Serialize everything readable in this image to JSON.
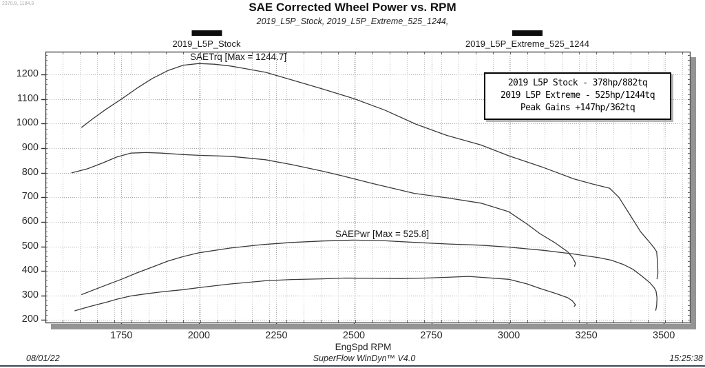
{
  "cursor_readout": "2370.8, 1184.3",
  "header": {
    "title": "SAE Corrected Wheel Power vs. RPM",
    "subtitle": "2019_L5P_Stock, 2019_L5P_Extreme_525_1244,"
  },
  "legend": {
    "stock_label": "2019_L5P_Stock",
    "extreme_label": "2019_L5P_Extreme_525_1244"
  },
  "annotations": {
    "torque_max_label": "SAETrq [Max = 1244.7]",
    "power_max_label": "SAEPwr [Max = 525.8]"
  },
  "info_box": {
    "line1": "2019 L5P Stock - 378hp/882tq",
    "line2": "2019 L5P Extreme - 525hp/1244tq",
    "line3": "Peak Gains +147hp/362tq"
  },
  "footer": {
    "date": "08/01/22",
    "app": "SuperFlow WinDyn™ V4.0",
    "time": "15:25:38"
  },
  "colors": {
    "curve": "#3a3a3a",
    "grid_minor": "#c6c6c6",
    "grid_major": "#a8a8a8",
    "frame": "#4a4a4a",
    "shadow": "#949494"
  },
  "chart_data": {
    "type": "line",
    "title": "SAE Corrected Wheel Power vs. RPM",
    "subtitle": "2019_L5P_Stock, 2019_L5P_Extreme_525_1244,",
    "xlabel": "EngSpd RPM",
    "ylabel": "",
    "xlim": [
      1505,
      3584
    ],
    "ylim": [
      190,
      1293
    ],
    "x_ticks": [
      1750,
      2000,
      2250,
      2500,
      2750,
      3000,
      3250,
      3500
    ],
    "y_ticks": [
      200,
      300,
      400,
      500,
      600,
      700,
      800,
      900,
      1000,
      1100,
      1200
    ],
    "grid": "dotted",
    "legend_position": "top",
    "series": [
      {
        "name": "2019_L5P_Extreme_525_1244 SAETrq",
        "peak": 1244.7,
        "points": [
          [
            1622,
            985
          ],
          [
            1660,
            1022
          ],
          [
            1700,
            1058
          ],
          [
            1750,
            1100
          ],
          [
            1800,
            1144
          ],
          [
            1850,
            1184
          ],
          [
            1900,
            1216
          ],
          [
            1950,
            1238
          ],
          [
            2000,
            1244.7
          ],
          [
            2050,
            1242
          ],
          [
            2100,
            1235
          ],
          [
            2150,
            1224
          ],
          [
            2215,
            1209
          ],
          [
            2300,
            1178
          ],
          [
            2400,
            1141
          ],
          [
            2500,
            1102
          ],
          [
            2600,
            1055
          ],
          [
            2700,
            998
          ],
          [
            2800,
            952
          ],
          [
            2910,
            913
          ],
          [
            3000,
            869
          ],
          [
            3110,
            822
          ],
          [
            3210,
            775
          ],
          [
            3270,
            754
          ],
          [
            3325,
            737
          ],
          [
            3355,
            700
          ],
          [
            3380,
            650
          ],
          [
            3405,
            600
          ],
          [
            3425,
            560
          ],
          [
            3450,
            523
          ],
          [
            3468,
            495
          ],
          [
            3477,
            478
          ],
          [
            3480,
            430
          ],
          [
            3481,
            390
          ],
          [
            3478,
            368
          ]
        ]
      },
      {
        "name": "2019_L5P_Extreme_525_1244 SAEPwr",
        "peak": 525.8,
        "points": [
          [
            1622,
            304
          ],
          [
            1700,
            342
          ],
          [
            1750,
            366
          ],
          [
            1800,
            392
          ],
          [
            1850,
            416
          ],
          [
            1900,
            440
          ],
          [
            1950,
            459
          ],
          [
            2000,
            474
          ],
          [
            2100,
            493
          ],
          [
            2200,
            507
          ],
          [
            2300,
            516
          ],
          [
            2400,
            522
          ],
          [
            2500,
            525.8
          ],
          [
            2600,
            523
          ],
          [
            2700,
            516
          ],
          [
            2800,
            510
          ],
          [
            2910,
            505
          ],
          [
            3000,
            497
          ],
          [
            3110,
            484
          ],
          [
            3210,
            469
          ],
          [
            3290,
            454
          ],
          [
            3330,
            444
          ],
          [
            3370,
            426
          ],
          [
            3400,
            407
          ],
          [
            3430,
            378
          ],
          [
            3455,
            352
          ],
          [
            3468,
            333
          ],
          [
            3475,
            318
          ],
          [
            3478,
            290
          ],
          [
            3477,
            260
          ],
          [
            3474,
            240
          ]
        ]
      },
      {
        "name": "2019_L5P_Stock SAETrq",
        "peak": 882,
        "points": [
          [
            1590,
            800
          ],
          [
            1640,
            816
          ],
          [
            1690,
            840
          ],
          [
            1735,
            864
          ],
          [
            1780,
            880
          ],
          [
            1830,
            882
          ],
          [
            1880,
            880
          ],
          [
            1950,
            874
          ],
          [
            2000,
            871
          ],
          [
            2100,
            867
          ],
          [
            2215,
            853
          ],
          [
            2300,
            833
          ],
          [
            2400,
            806
          ],
          [
            2460,
            788
          ],
          [
            2560,
            756
          ],
          [
            2695,
            716
          ],
          [
            2800,
            698
          ],
          [
            2910,
            676
          ],
          [
            3000,
            641
          ],
          [
            3060,
            590
          ],
          [
            3100,
            552
          ],
          [
            3150,
            514
          ],
          [
            3190,
            478
          ],
          [
            3205,
            455
          ],
          [
            3215,
            432
          ],
          [
            3212,
            419
          ]
        ]
      },
      {
        "name": "2019_L5P_Stock SAEPwr",
        "peak": 378,
        "points": [
          [
            1600,
            238
          ],
          [
            1650,
            256
          ],
          [
            1700,
            272
          ],
          [
            1735,
            285
          ],
          [
            1780,
            298
          ],
          [
            1830,
            307
          ],
          [
            1880,
            315
          ],
          [
            1950,
            324
          ],
          [
            2000,
            332
          ],
          [
            2100,
            347
          ],
          [
            2215,
            360
          ],
          [
            2300,
            365
          ],
          [
            2400,
            368
          ],
          [
            2470,
            371
          ],
          [
            2560,
            370
          ],
          [
            2650,
            369
          ],
          [
            2730,
            371
          ],
          [
            2800,
            374
          ],
          [
            2870,
            377.8
          ],
          [
            2910,
            374
          ],
          [
            3000,
            366
          ],
          [
            3060,
            347
          ],
          [
            3100,
            329
          ],
          [
            3150,
            309
          ],
          [
            3190,
            291
          ],
          [
            3205,
            278
          ],
          [
            3215,
            262
          ],
          [
            3211,
            256
          ]
        ]
      }
    ]
  }
}
